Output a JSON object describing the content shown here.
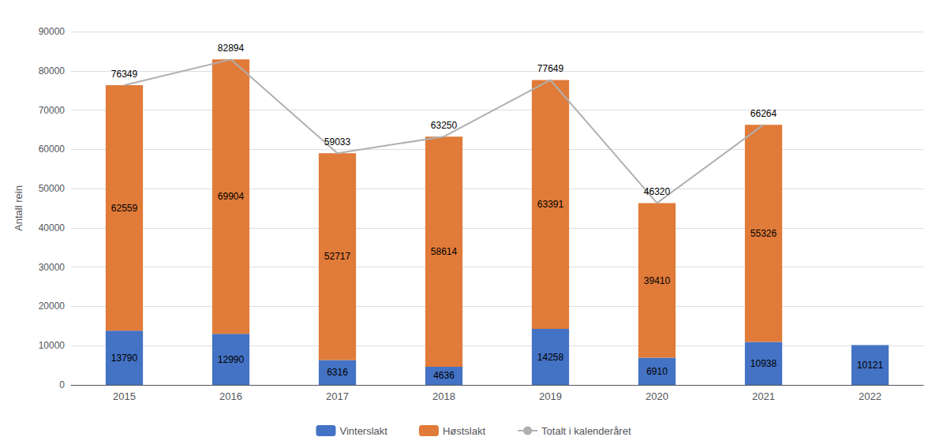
{
  "chart_data": {
    "type": "bar",
    "stacked": true,
    "categories": [
      "2015",
      "2016",
      "2017",
      "2018",
      "2019",
      "2020",
      "2021",
      "2022"
    ],
    "series": [
      {
        "name": "Vinterslakt",
        "type": "bar",
        "color": "#4472C4",
        "values": [
          13790,
          12990,
          6316,
          4636,
          14258,
          6910,
          10938,
          10121
        ]
      },
      {
        "name": "Høstslakt",
        "type": "bar",
        "color": "#E07B39",
        "values": [
          62559,
          69904,
          52717,
          58614,
          63391,
          39410,
          55326,
          0
        ]
      },
      {
        "name": "Totalt i kalenderåret",
        "type": "line",
        "color": "#B0B0B0",
        "values": [
          76349,
          82894,
          59033,
          63250,
          77649,
          46320,
          66264,
          null
        ]
      }
    ],
    "ylabel": "Antall rein",
    "ylim": [
      0,
      90000
    ],
    "yticks": [
      0,
      10000,
      20000,
      30000,
      40000,
      50000,
      60000,
      70000,
      80000,
      90000
    ],
    "grid": true,
    "legend": "bottom",
    "data_labels": true
  }
}
